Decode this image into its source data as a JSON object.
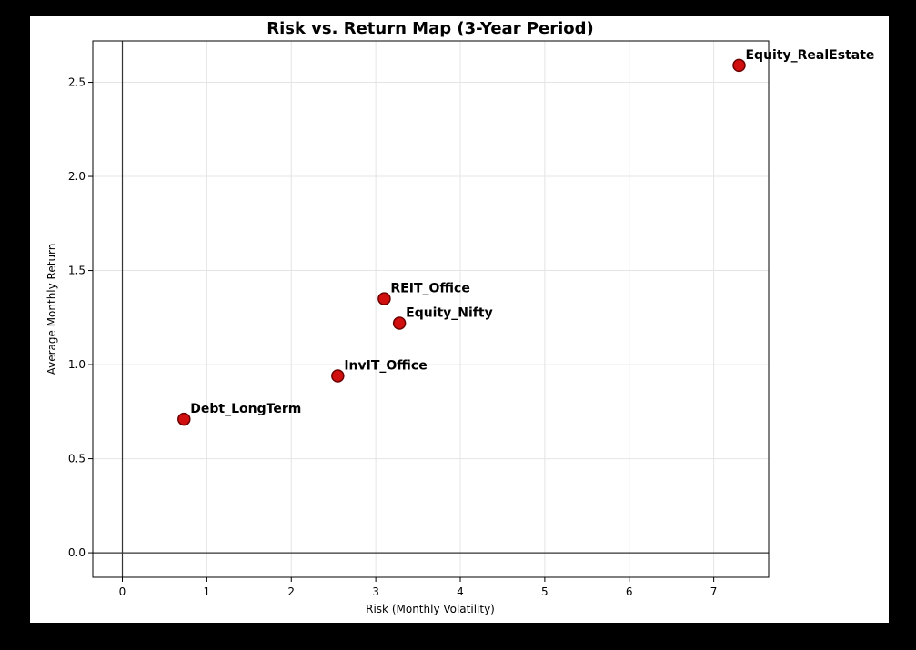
{
  "chart_data": {
    "type": "scatter",
    "title": "Risk vs. Return Map (3-Year Period)",
    "xlabel": "Risk (Monthly Volatility)",
    "ylabel": "Average Monthly Return",
    "xlim": [
      -0.35,
      7.65
    ],
    "ylim": [
      -0.13,
      2.72
    ],
    "xticks": [
      0,
      1,
      2,
      3,
      4,
      5,
      6,
      7
    ],
    "yticks": [
      0.0,
      0.5,
      1.0,
      1.5,
      2.0,
      2.5
    ],
    "ytick_labels": [
      "0.0",
      "0.5",
      "1.0",
      "1.5",
      "2.0",
      "2.5"
    ],
    "grid": true,
    "reference_lines": {
      "x": 0,
      "y": 0
    },
    "marker_color": "#d10f0f",
    "marker_edge": "#6b0000",
    "points": [
      {
        "label": "Debt_LongTerm",
        "x": 0.73,
        "y": 0.71
      },
      {
        "label": "InvIT_Office",
        "x": 2.55,
        "y": 0.94
      },
      {
        "label": "REIT_Office",
        "x": 3.1,
        "y": 1.35
      },
      {
        "label": "Equity_Nifty",
        "x": 3.28,
        "y": 1.22
      },
      {
        "label": "Equity_RealEstate",
        "x": 7.3,
        "y": 2.59
      }
    ]
  }
}
